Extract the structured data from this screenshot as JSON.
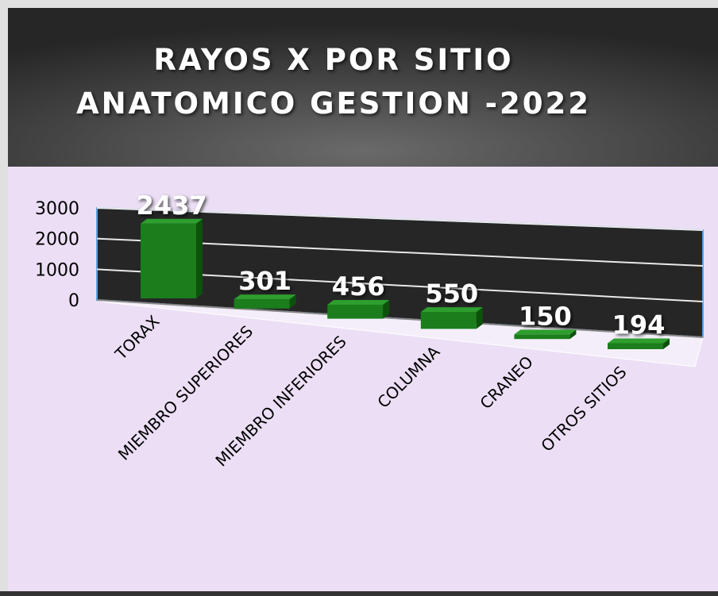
{
  "chart_data": {
    "type": "bar3d",
    "title": [
      "RAYOS X POR SITIO",
      "ANATOMICO GESTION -2022"
    ],
    "categories": [
      "TORAX",
      "MIEMBRO SUPERIORES",
      "MIEMBRO INFERIORES",
      "COLUMNA",
      "CRANEO",
      "OTROS SITIOS"
    ],
    "values": [
      2437,
      301,
      456,
      550,
      150,
      194
    ],
    "color": "#1b7d1b",
    "ylim": [
      0,
      3000
    ],
    "yticks": [
      0,
      1000,
      2000,
      3000
    ],
    "grid": true
  }
}
